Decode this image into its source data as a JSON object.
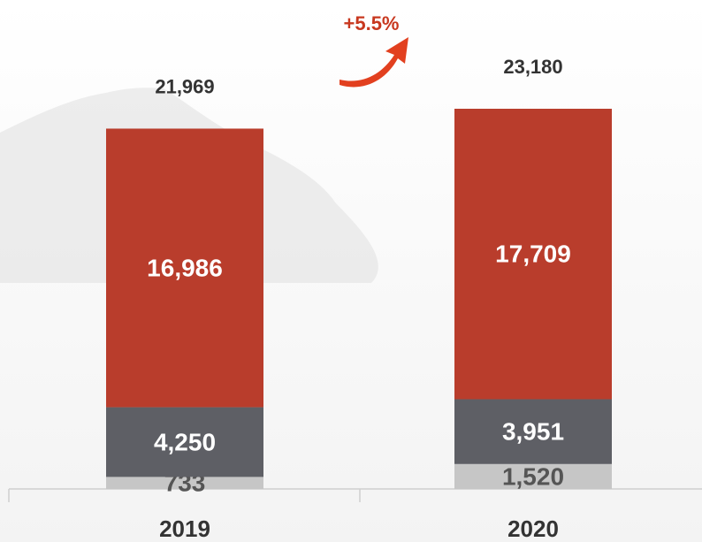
{
  "chart_data": {
    "type": "stacked-bar",
    "categories": [
      "2019",
      "2020"
    ],
    "series": [
      {
        "color": "#c6c6c6",
        "values": [
          733,
          1520
        ],
        "value_labels": [
          "733",
          "1,520"
        ],
        "label_color": "#555555"
      },
      {
        "color": "#5e5f65",
        "values": [
          4250,
          3951
        ],
        "value_labels": [
          "4,250",
          "3,951"
        ],
        "label_color": "#ffffff"
      },
      {
        "color": "#b93d2c",
        "values": [
          16986,
          17709
        ],
        "value_labels": [
          "16,986",
          "17,709"
        ],
        "label_color": "#ffffff"
      }
    ],
    "totals": [
      21969,
      23180
    ],
    "total_labels": [
      "21,969",
      "23,180"
    ],
    "annotation": "+5.5%"
  }
}
